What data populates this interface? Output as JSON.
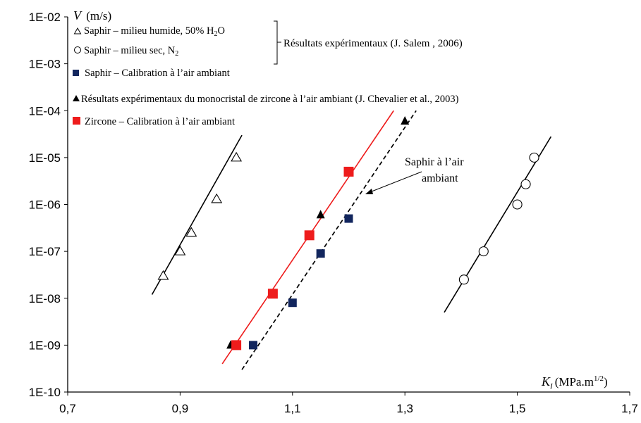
{
  "chart_data": {
    "type": "scatter",
    "ylog": true,
    "xlim": [
      0.7,
      1.7
    ],
    "ylim": [
      1e-10,
      0.01
    ],
    "x_ticks": [
      "0,7",
      "0,9",
      "1,1",
      "1,3",
      "1,5",
      "1,7"
    ],
    "y_ticks": [
      "1E-10",
      "1E-09",
      "1E-08",
      "1E-07",
      "1E-06",
      "1E-05",
      "1E-04",
      "1E-03",
      "1E-02"
    ],
    "ylabel_var": "V",
    "ylabel_unit": "(m/s)",
    "xlabel_var": "K",
    "xlabel_sub": "I",
    "xlabel_unit": "(MPa.m",
    "xlabel_sup": "1/2",
    "xlabel_end": ")",
    "group_label": "Résultats expérimentaux (J. Salem , 2006)",
    "annotation_line1": "Saphir à l’air",
    "annotation_line2": "ambiant",
    "series": [
      {
        "name": "Saphir – milieu humide, 50% H",
        "name_sub": "2",
        "name_end": "O",
        "marker": "triangle-open",
        "color": "#000000",
        "x": [
          0.87,
          0.9,
          0.92,
          0.965,
          1.0
        ],
        "y": [
          3e-08,
          1e-07,
          2.5e-07,
          1.3e-06,
          1e-05
        ]
      },
      {
        "name": "Saphir – milieu sec, N",
        "name_sub": "2",
        "name_end": "",
        "marker": "circle-open",
        "color": "#000000",
        "x": [
          1.405,
          1.44,
          1.5,
          1.515,
          1.53
        ],
        "y": [
          2.5e-08,
          1e-07,
          1e-06,
          2.7e-06,
          1e-05
        ]
      },
      {
        "name": "Saphir – Calibration à l’air ambiant",
        "marker": "square",
        "color": "#12265e",
        "x": [
          1.03,
          1.1,
          1.15,
          1.2
        ],
        "y": [
          1e-09,
          8e-09,
          9e-08,
          5e-07
        ]
      },
      {
        "name": "Résultats expérimentaux du monocristal de zircone à l’air ambiant (J. Chevalier et al., 2003)",
        "marker": "triangle-filled",
        "color": "#000000",
        "x": [
          0.99,
          1.15,
          1.3
        ],
        "y": [
          1e-09,
          6e-07,
          6e-05
        ]
      },
      {
        "name": "Zircone – Calibration à l’air ambiant",
        "marker": "square",
        "color": "#ee1c1c",
        "x": [
          1.0,
          1.065,
          1.13,
          1.2
        ],
        "y": [
          1e-09,
          1.25e-08,
          2.2e-07,
          5e-06
        ]
      }
    ],
    "fit_lines": [
      {
        "series": "saphir-humide",
        "style": "solid",
        "color": "#000000",
        "x": [
          0.85,
          1.01
        ],
        "y": [
          1.2e-08,
          3e-05
        ]
      },
      {
        "series": "saphir-sec",
        "style": "solid",
        "color": "#000000",
        "x": [
          1.37,
          1.56
        ],
        "y": [
          5e-09,
          2.8e-05
        ]
      },
      {
        "series": "zircone",
        "style": "solid",
        "color": "#ee1c1c",
        "x": [
          0.975,
          1.28
        ],
        "y": [
          4e-10,
          0.0001
        ]
      },
      {
        "series": "saphir-air",
        "style": "dashed",
        "color": "#000000",
        "x": [
          1.01,
          1.32
        ],
        "y": [
          3e-10,
          0.0001
        ]
      }
    ]
  }
}
